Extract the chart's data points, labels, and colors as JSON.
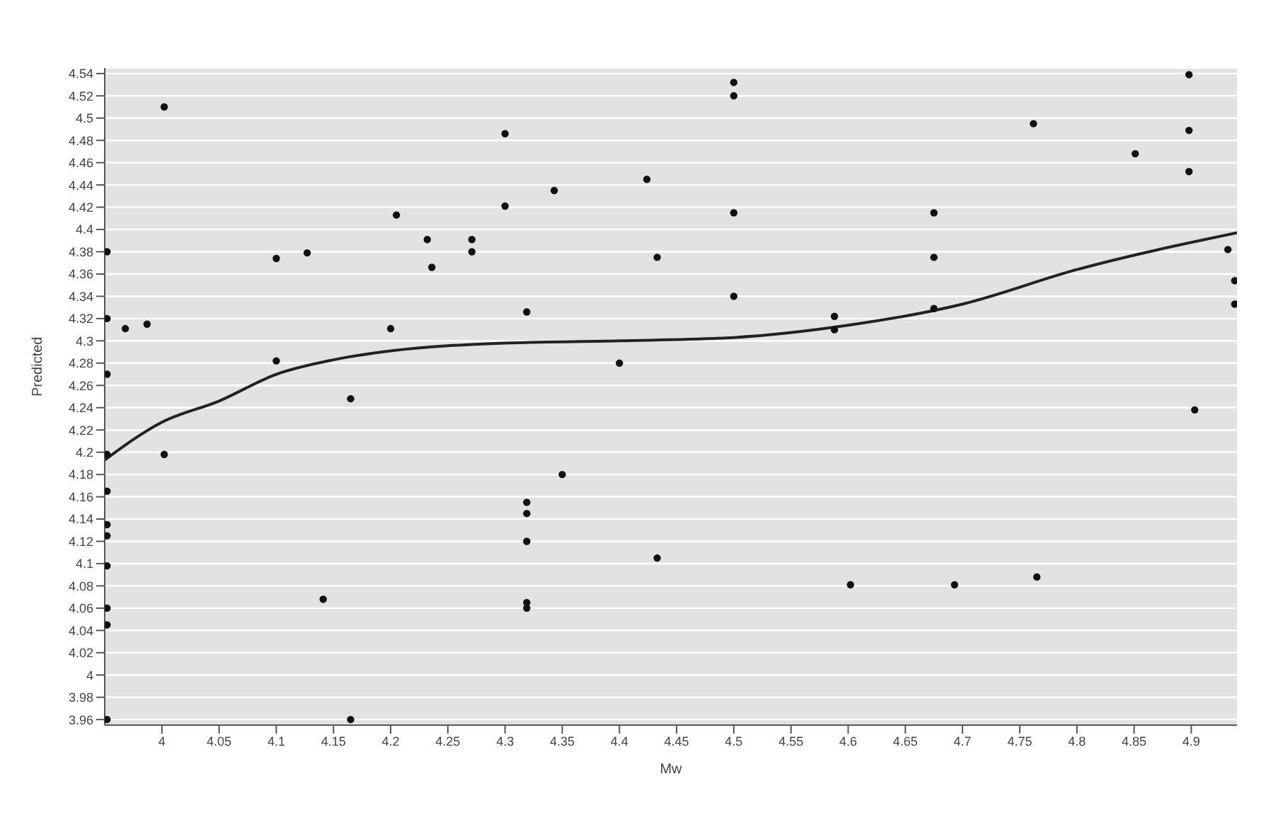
{
  "chart_data": {
    "type": "scatter",
    "xlabel": "Mw",
    "ylabel": "Predicted",
    "xlim": [
      3.95,
      4.94
    ],
    "xticks": [
      4,
      4.05,
      4.1,
      4.15,
      4.2,
      4.25,
      4.3,
      4.35,
      4.4,
      4.45,
      4.5,
      4.55,
      4.6,
      4.65,
      4.7,
      4.75,
      4.8,
      4.85,
      4.9
    ],
    "ylim": [
      3.955,
      4.545
    ],
    "yticks": [
      3.96,
      3.98,
      4,
      4.02,
      4.04,
      4.06,
      4.08,
      4.1,
      4.12,
      4.14,
      4.16,
      4.18,
      4.2,
      4.22,
      4.24,
      4.26,
      4.28,
      4.3,
      4.32,
      4.34,
      4.36,
      4.38,
      4.4,
      4.42,
      4.44,
      4.46,
      4.48,
      4.5,
      4.52,
      4.54
    ],
    "grid": "y",
    "marker": "circle",
    "series": [
      {
        "color": "#111111",
        "x": [
          3.952,
          3.952,
          3.952,
          3.952,
          3.952,
          3.952,
          3.952,
          3.952,
          3.952,
          3.952,
          3.952,
          3.968,
          3.987,
          4.002,
          4.002,
          4.1,
          4.1,
          4.127,
          4.141,
          4.165,
          4.165,
          4.205,
          4.2,
          4.232,
          4.236,
          4.271,
          4.271,
          4.3,
          4.3,
          4.319,
          4.319,
          4.319,
          4.319,
          4.319,
          4.319,
          4.343,
          4.35,
          4.4,
          4.424,
          4.433,
          4.433,
          4.5,
          4.5,
          4.5,
          4.5,
          4.588,
          4.588,
          4.602,
          4.675,
          4.675,
          4.675,
          4.693,
          4.765,
          4.762,
          4.851,
          4.898,
          4.898,
          4.898,
          4.903,
          4.932,
          4.938,
          4.938
        ],
        "values": [
          4.38,
          4.32,
          4.27,
          4.198,
          4.165,
          4.135,
          4.125,
          4.098,
          4.06,
          4.045,
          3.96,
          4.311,
          4.315,
          4.51,
          4.198,
          4.374,
          4.282,
          4.379,
          4.068,
          4.248,
          3.96,
          4.413,
          4.311,
          4.391,
          4.366,
          4.391,
          4.38,
          4.486,
          4.421,
          4.326,
          4.155,
          4.145,
          4.12,
          4.065,
          4.06,
          4.435,
          4.18,
          4.28,
          4.445,
          4.375,
          4.105,
          4.532,
          4.52,
          4.415,
          4.34,
          4.322,
          4.31,
          4.081,
          4.415,
          4.375,
          4.329,
          4.081,
          4.088,
          4.495,
          4.468,
          4.539,
          4.489,
          4.452,
          4.238,
          4.382,
          4.354,
          4.333
        ]
      },
      {
        "type": "line",
        "color": "#222222",
        "marker": "none",
        "x": [
          3.95,
          4.0,
          4.05,
          4.1,
          4.15,
          4.2,
          4.3,
          4.4,
          4.5,
          4.6,
          4.7,
          4.8,
          4.94
        ],
        "values": [
          4.193,
          4.227,
          4.246,
          4.27,
          4.283,
          4.291,
          4.298,
          4.3,
          4.303,
          4.314,
          4.333,
          4.364,
          4.397
        ]
      }
    ]
  }
}
